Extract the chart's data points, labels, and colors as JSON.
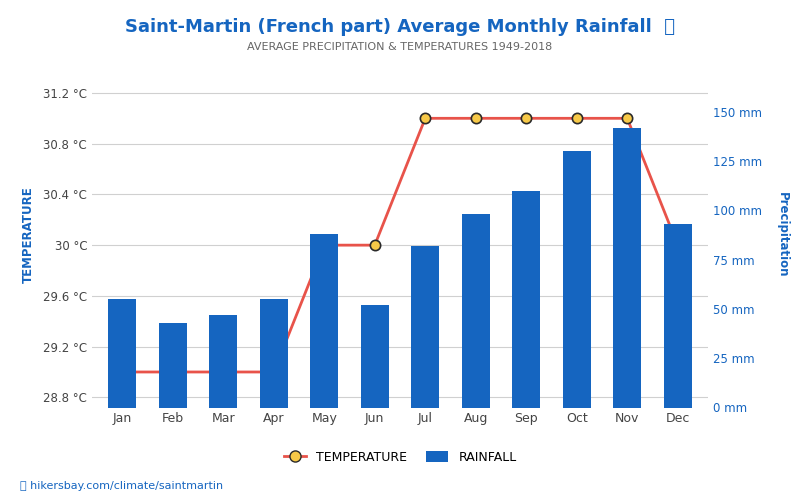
{
  "months": [
    "Jan",
    "Feb",
    "Mar",
    "Apr",
    "May",
    "Jun",
    "Jul",
    "Aug",
    "Sep",
    "Oct",
    "Nov",
    "Dec"
  ],
  "temperature": [
    29.0,
    29.0,
    29.0,
    29.0,
    30.0,
    30.0,
    31.0,
    31.0,
    31.0,
    31.0,
    31.0,
    30.0
  ],
  "rainfall_mm": [
    55,
    43,
    47,
    55,
    88,
    52,
    82,
    98,
    110,
    130,
    142,
    93
  ],
  "title": "Saint-Martin (French part) Average Monthly Rainfall",
  "title_icon": "🌧",
  "subtitle": "AVERAGE PRECIPITATION & TEMPERATURES 1949-2018",
  "ylabel_left": "TEMPERATURE",
  "ylabel_right": "Precipitation",
  "bar_color": "#1565c0",
  "line_color": "#e8534a",
  "marker_face": "#f7c948",
  "marker_edge": "#2a2a2a",
  "title_color": "#1565c0",
  "subtitle_color": "#666666",
  "left_label_color": "#1565c0",
  "right_label_color": "#1565c0",
  "left_tick_color": "#444444",
  "right_tick_color": "#1565c0",
  "xtick_color": "#444444",
  "temp_ylim": [
    28.72,
    31.44
  ],
  "temp_yticks": [
    28.8,
    29.2,
    29.6,
    30.0,
    30.4,
    30.8,
    31.2
  ],
  "temp_ytick_labels": [
    "28.8 °C",
    "29.2 °C",
    "29.6 °C",
    "30 °C",
    "30.4 °C",
    "30.8 °C",
    "31.2 °C"
  ],
  "rain_ylim": [
    0,
    175
  ],
  "rain_yticks": [
    0,
    25,
    50,
    75,
    100,
    125,
    150
  ],
  "rain_ytick_labels": [
    "0 mm",
    "25 mm",
    "50 mm",
    "75 mm",
    "100 mm",
    "125 mm",
    "150 mm"
  ],
  "footer_text": "hikersbay.com/climate/saintmartin",
  "footer_color": "#1565c0",
  "background_color": "#ffffff",
  "grid_color": "#d0d0d0"
}
